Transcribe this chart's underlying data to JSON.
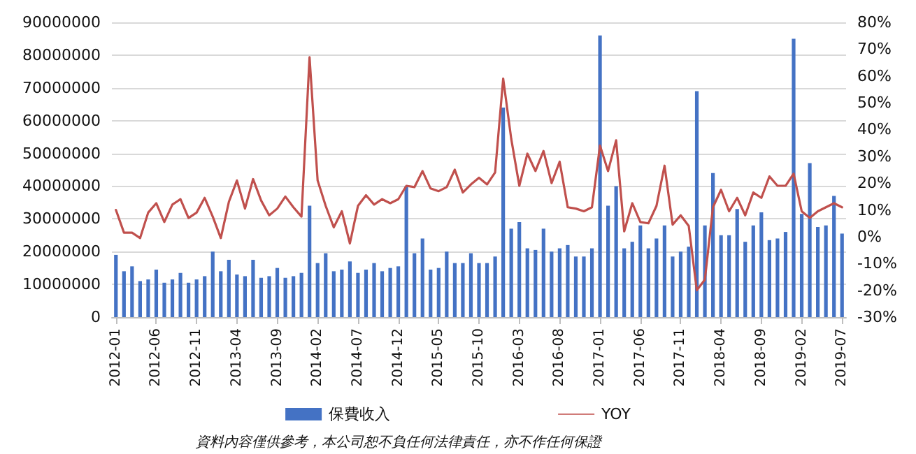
{
  "chart_data": {
    "type": "bar",
    "categories": [
      "2012-01",
      null,
      null,
      null,
      null,
      "2012-06",
      null,
      null,
      null,
      null,
      "2012-11",
      null,
      null,
      null,
      null,
      "2013-04",
      null,
      null,
      null,
      null,
      "2013-09",
      null,
      null,
      null,
      null,
      "2014-02",
      null,
      null,
      null,
      null,
      "2014-07",
      null,
      null,
      null,
      null,
      "2014-12",
      null,
      null,
      null,
      null,
      "2015-05",
      null,
      null,
      null,
      null,
      "2015-10",
      null,
      null,
      null,
      null,
      "2016-03",
      null,
      null,
      null,
      null,
      "2016-08",
      null,
      null,
      null,
      null,
      "2017-01",
      null,
      null,
      null,
      null,
      "2017-06",
      null,
      null,
      null,
      null,
      "2017-11",
      null,
      null,
      null,
      null,
      "2018-04",
      null,
      null,
      null,
      null,
      "2018-09",
      null,
      null,
      null,
      null,
      "2019-02",
      null,
      null,
      null,
      null,
      "2019-07"
    ],
    "series": [
      {
        "name": "保費收入",
        "color": "#4472c4",
        "values": [
          19000000,
          14000000,
          15500000,
          11000000,
          11500000,
          14500000,
          10500000,
          11500000,
          13500000,
          10500000,
          11500000,
          12500000,
          20000000,
          14000000,
          17500000,
          13000000,
          12500000,
          17500000,
          12000000,
          12500000,
          15000000,
          12000000,
          12500000,
          13500000,
          34000000,
          16500000,
          19500000,
          14000000,
          14500000,
          17000000,
          13500000,
          14500000,
          16500000,
          14000000,
          15000000,
          15500000,
          40000000,
          19500000,
          24000000,
          14500000,
          15000000,
          20000000,
          16500000,
          16500000,
          19500000,
          16500000,
          16500000,
          18500000,
          64000000,
          27000000,
          29000000,
          21000000,
          20500000,
          27000000,
          20000000,
          21000000,
          22000000,
          18500000,
          18500000,
          21000000,
          86000000,
          34000000,
          40000000,
          21000000,
          23000000,
          28000000,
          21000000,
          24000000,
          28000000,
          18500000,
          20000000,
          21500000,
          69000000,
          28000000,
          44000000,
          25000000,
          25000000,
          33000000,
          23000000,
          28000000,
          32000000,
          23500000,
          24000000,
          26000000,
          85000000,
          31500000,
          47000000,
          27500000,
          28000000,
          37000000,
          25500000
        ]
      },
      {
        "name": "YOY",
        "type": "line",
        "axis": "y2",
        "color": "#c0504d",
        "values": [
          10,
          1.5,
          1.5,
          -0.5,
          9,
          12.5,
          5.5,
          12,
          14,
          7,
          9,
          14.5,
          7.5,
          -0.5,
          13,
          21,
          10.5,
          21.5,
          13.5,
          8,
          10.5,
          15,
          11,
          7.5,
          67,
          21,
          11.5,
          3.5,
          9.5,
          -2.5,
          11.5,
          15.5,
          12,
          14,
          12.5,
          14,
          19,
          18.5,
          24.5,
          18,
          17,
          18.5,
          25,
          16.5,
          19.5,
          22,
          19.5,
          24,
          59,
          36.5,
          19,
          31,
          24.5,
          32,
          20,
          28,
          11,
          10.5,
          9.5,
          11,
          34,
          24.5,
          36,
          2,
          12.5,
          5.5,
          5,
          11.5,
          26.5,
          4.5,
          8,
          4,
          -20,
          -16,
          11,
          17.5,
          9.5,
          14.5,
          8,
          16.5,
          14.5,
          22.5,
          19,
          19,
          23.5,
          9.5,
          7,
          9.5,
          11,
          12.5,
          11
        ]
      }
    ],
    "ylim": [
      0,
      90000000
    ],
    "yticks": [
      0,
      10000000,
      20000000,
      30000000,
      40000000,
      50000000,
      60000000,
      70000000,
      80000000,
      90000000
    ],
    "y2lim": [
      -30,
      80
    ],
    "y2ticks": [
      {
        "value": -30,
        "label": "-30%"
      },
      {
        "value": -20,
        "label": "-20%"
      },
      {
        "value": -10,
        "label": "-10%"
      },
      {
        "value": 0,
        "label": "0%"
      },
      {
        "value": 10,
        "label": "10%"
      },
      {
        "value": 20,
        "label": "20%"
      },
      {
        "value": 30,
        "label": "30%"
      },
      {
        "value": 40,
        "label": "40%"
      },
      {
        "value": 50,
        "label": "50%"
      },
      {
        "value": 60,
        "label": "60%"
      },
      {
        "value": 70,
        "label": "70%"
      },
      {
        "value": 80,
        "label": "80%"
      }
    ],
    "grid": "y",
    "legend": "bottom",
    "marker": "none",
    "line_style": "solid",
    "annotations": [
      "資料內容僅供參考，本公司恕不負任何法律責任，亦不作任何保證"
    ]
  }
}
